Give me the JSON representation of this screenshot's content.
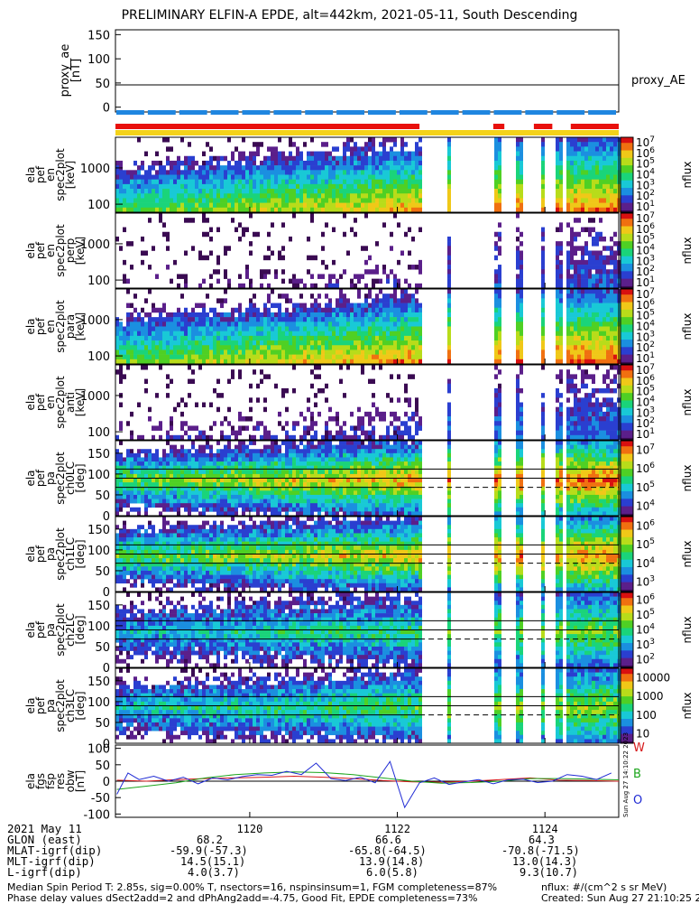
{
  "title": "PRELIMINARY ELFIN-A EPDE, alt=442km, 2021-05-11, South Descending",
  "colors": {
    "bar_red": "#e8100c",
    "bar_blue": "#1f86e0",
    "bar_yellow": "#f4d21a",
    "line_black": "#000000",
    "fgm_W": "#d6191b",
    "fgm_B": "#1ca51c",
    "fgm_O": "#1f2ad4",
    "colormap": [
      "#ffffff",
      "#3a0a52",
      "#5b1f8a",
      "#2a3fd0",
      "#1b8fe0",
      "#19c9d6",
      "#1ad47a",
      "#4fd024",
      "#b8dc1a",
      "#f0c818",
      "#f07010",
      "#d81010"
    ]
  },
  "proxy_ae": {
    "ylabel": "proxy_ae [nT]",
    "ylabel_lines": [
      "proxy_ae",
      "[nT]"
    ],
    "legend": "proxy_AE",
    "yticks": [
      "150",
      "100",
      "50",
      "0"
    ],
    "level": 46
  },
  "status_bars": {
    "blue_dashes": 16,
    "red_segments": [
      [
        1118.18,
        1122.3
      ],
      [
        1123.3,
        1123.45
      ],
      [
        1123.85,
        1124.1
      ],
      [
        1124.35,
        1125.0
      ]
    ],
    "yellow_segment": [
      1118.18,
      1125.0
    ]
  },
  "chart_data": [
    {
      "type": "heatmap",
      "name_lines": [
        "ela",
        "pef",
        "en",
        "spec2plot",
        "[keV]"
      ],
      "yticks": [
        "1000",
        "100"
      ],
      "colorbar_ticks": [
        "10^7",
        "10^6",
        "10^5",
        "10^4",
        "10^3",
        "10^2",
        "10^1"
      ],
      "colorbar_label": "nflux",
      "ylog": true,
      "ylim": [
        60,
        7000
      ],
      "note": ""
    },
    {
      "type": "heatmap",
      "name_lines": [
        "ela",
        "pef",
        "en",
        "spec2plot",
        "perp",
        "[keV]"
      ],
      "yticks": [
        "1000",
        "100"
      ],
      "colorbar_ticks": [
        "10^7",
        "10^6",
        "10^5",
        "10^4",
        "10^3",
        "10^2",
        "10^1"
      ],
      "colorbar_label": "nflux",
      "ylog": true,
      "ylim": [
        60,
        7000
      ]
    },
    {
      "type": "heatmap",
      "name_lines": [
        "ela",
        "pef",
        "en",
        "spec2plot",
        "para",
        "[keV]"
      ],
      "yticks": [
        "1000",
        "100"
      ],
      "colorbar_ticks": [
        "10^7",
        "10^6",
        "10^5",
        "10^4",
        "10^3",
        "10^2",
        "10^1"
      ],
      "colorbar_label": "nflux",
      "ylog": true,
      "ylim": [
        60,
        7000
      ]
    },
    {
      "type": "heatmap",
      "name_lines": [
        "ela",
        "pef",
        "en",
        "spec2plot",
        "anti",
        "[keV]"
      ],
      "yticks": [
        "1000",
        "100"
      ],
      "colorbar_ticks": [
        "10^7",
        "10^6",
        "10^5",
        "10^4",
        "10^3",
        "10^2",
        "10^1"
      ],
      "colorbar_label": "nflux",
      "ylog": true,
      "ylim": [
        60,
        7000
      ]
    },
    {
      "type": "heatmap",
      "name_lines": [
        "ela",
        "pef",
        "pa",
        "spec2plot",
        "ch0LC",
        "[deg]"
      ],
      "yticks": [
        "150",
        "100",
        "50",
        "0"
      ],
      "ylim": [
        0,
        180
      ],
      "hlines_solid": [
        90,
        112
      ],
      "hlines_dashed": [
        68
      ],
      "colorbar_ticks": [
        "10^7",
        "10^6",
        "10^5",
        "10^4"
      ],
      "colorbar_label": "nflux"
    },
    {
      "type": "heatmap",
      "name_lines": [
        "ela",
        "pef",
        "pa",
        "spec2plot",
        "ch1LC",
        "[deg]"
      ],
      "yticks": [
        "150",
        "100",
        "50",
        "0"
      ],
      "ylim": [
        0,
        180
      ],
      "hlines_solid": [
        90,
        112
      ],
      "hlines_dashed": [
        68
      ],
      "colorbar_ticks": [
        "10^6",
        "10^5",
        "10^4",
        "10^3"
      ],
      "colorbar_label": "nflux"
    },
    {
      "type": "heatmap",
      "name_lines": [
        "ela",
        "pef",
        "pa",
        "spec2plot",
        "ch2LC",
        "[deg]"
      ],
      "yticks": [
        "150",
        "100",
        "50",
        "0"
      ],
      "ylim": [
        0,
        180
      ],
      "hlines_solid": [
        90,
        112
      ],
      "hlines_dashed": [
        68
      ],
      "colorbar_ticks": [
        "10^6",
        "10^5",
        "10^4",
        "10^3",
        "10^2"
      ],
      "colorbar_label": "nflux"
    },
    {
      "type": "heatmap",
      "name_lines": [
        "ela",
        "pef",
        "pa",
        "spec2plot",
        "ch3LC",
        "[deg]"
      ],
      "yticks": [
        "150",
        "100",
        "50",
        "0"
      ],
      "ylim": [
        0,
        180
      ],
      "hlines_solid": [
        90,
        112
      ],
      "hlines_dashed": [
        68
      ],
      "colorbar_ticks": [
        "10000",
        "1000",
        "100",
        "10"
      ],
      "colorbar_label": "nflux"
    },
    {
      "type": "line",
      "name_lines": [
        "ela",
        "fgs",
        "fsp",
        "res",
        "obw",
        "[nT]"
      ],
      "yticks": [
        "100",
        "50",
        "0",
        "-50",
        "-100"
      ],
      "ylim": [
        -110,
        110
      ],
      "legend": [
        "W",
        "B",
        "O"
      ],
      "side_note": "Sun Aug 27 14:10:22 2023",
      "series": [
        {
          "name": "W",
          "color": "#d6191b",
          "x": [
            1118.2,
            1118.6,
            1119.0,
            1119.4,
            1119.8,
            1120.2,
            1120.6,
            1121.0,
            1121.4,
            1121.8,
            1122.2,
            1122.6,
            1123.0,
            1123.4,
            1123.8,
            1124.2,
            1124.6,
            1125.0
          ],
          "y": [
            3,
            0,
            5,
            8,
            10,
            12,
            15,
            12,
            8,
            2,
            -2,
            -3,
            0,
            5,
            10,
            3,
            2,
            0
          ]
        },
        {
          "name": "B",
          "color": "#1ca51c",
          "x": [
            1118.2,
            1118.6,
            1119.0,
            1119.4,
            1119.8,
            1120.2,
            1120.6,
            1121.0,
            1121.4,
            1121.8,
            1122.2,
            1122.6,
            1123.0,
            1123.4,
            1123.8,
            1124.2,
            1124.6,
            1125.0
          ],
          "y": [
            -25,
            -15,
            -5,
            10,
            20,
            25,
            28,
            26,
            20,
            10,
            0,
            -6,
            -4,
            0,
            8,
            8,
            6,
            4
          ]
        },
        {
          "name": "O",
          "color": "#1f2ad4",
          "x": [
            1118.2,
            1118.35,
            1118.5,
            1118.7,
            1118.9,
            1119.1,
            1119.3,
            1119.5,
            1119.7,
            1119.9,
            1120.1,
            1120.3,
            1120.5,
            1120.7,
            1120.9,
            1121.1,
            1121.3,
            1121.5,
            1121.7,
            1121.9,
            1122.1,
            1122.3,
            1122.5,
            1122.7,
            1122.9,
            1123.1,
            1123.3,
            1123.5,
            1123.7,
            1123.9,
            1124.1,
            1124.3,
            1124.5,
            1124.7,
            1124.9
          ],
          "y": [
            -40,
            25,
            5,
            15,
            0,
            12,
            -8,
            10,
            4,
            14,
            20,
            18,
            30,
            20,
            55,
            8,
            2,
            12,
            -5,
            60,
            -80,
            -5,
            10,
            -10,
            -2,
            5,
            -8,
            4,
            6,
            -4,
            0,
            20,
            15,
            5,
            25
          ]
        }
      ]
    }
  ],
  "x_axis": {
    "ticks": [
      "1120",
      "1122",
      "1124"
    ],
    "tick_values": [
      1120,
      1122,
      1124
    ],
    "xlim": [
      1118.18,
      1125.0
    ],
    "rows": [
      {
        "label": "2021 May 11",
        "values": [
          "1120",
          "1122",
          "1124"
        ]
      },
      {
        "label": "GLON (east)",
        "values": [
          "68.2",
          "66.6",
          "64.3"
        ]
      },
      {
        "label": "MLAT-igrf(dip)",
        "values": [
          "-59.9(-57.3)",
          "-65.8(-64.5)",
          "-70.8(-71.5)"
        ]
      },
      {
        "label": "MLT-igrf(dip)",
        "values": [
          "14.5(15.1)",
          "13.9(14.8)",
          "13.0(14.3)"
        ]
      },
      {
        "label": "L-igrf(dip)",
        "values": [
          "4.0(3.7)",
          "6.0(5.8)",
          "9.3(10.7)"
        ]
      }
    ]
  },
  "footer": {
    "line1": "Median Spin Period T: 2.85s, sig=0.00% T, nsectors=16, nspinsinsum=1, FGM completeness=87%",
    "line2": "Phase delay values dSect2add=2 and dPhAng2add=-4.75, Good Fit, EPDE completeness=73%",
    "right1": "nflux: #/(cm^2 s sr MeV)",
    "right2": "Created: Sun Aug 27 21:10:25 2023"
  }
}
